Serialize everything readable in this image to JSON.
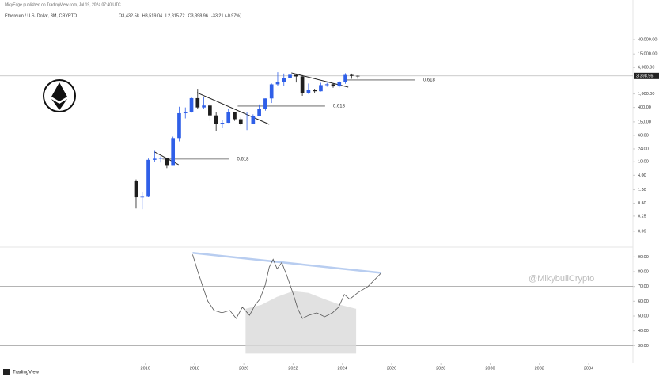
{
  "header": {
    "publisher": "MikyEdge published on TradingView.com, Jul 19, 2024 07:40 UTC",
    "symbol": "Ethereum / U.S. Dollar, 3M, CRYPTO",
    "ohlc": [
      "O3,432.58",
      "H3,519.04",
      "L2,815.72",
      "C3,398.96",
      "-33.21 (-0.97%)"
    ],
    "watermark": "@MikybullCrypto",
    "brand": "TradingView"
  },
  "chart_data": [
    {
      "type": "candlestick",
      "name": "price",
      "log_scale": true,
      "xlim": [
        2010.1,
        2035.8
      ],
      "xticks": [
        2016,
        2018,
        2020,
        2022,
        2024,
        2026,
        2028,
        2030,
        2032,
        2034
      ],
      "ylim": [
        0.034,
        343000
      ],
      "yticks": [
        {
          "value": 40000,
          "label": "40,000.00"
        },
        {
          "value": 15000,
          "label": "15,000.00"
        },
        {
          "value": 6000,
          "label": "6,000.00"
        },
        {
          "value": 1000,
          "label": "1,000.00"
        },
        {
          "value": 400,
          "label": "400.00"
        },
        {
          "value": 150,
          "label": "150.00"
        },
        {
          "value": 60,
          "label": "60.00"
        },
        {
          "value": 24,
          "label": "24.00"
        },
        {
          "value": 10,
          "label": "10.00"
        },
        {
          "value": 4,
          "label": "4.00"
        },
        {
          "value": 1.5,
          "label": "1.50"
        },
        {
          "value": 0.6,
          "label": "0.60"
        },
        {
          "value": 0.25,
          "label": "0.25"
        },
        {
          "value": 0.09,
          "label": "0.09"
        }
      ],
      "current_price": {
        "value": 3398.96,
        "label": "3,398.96"
      },
      "up_color": "#2f5fe8",
      "down_color": "#1e1e1e",
      "x": [
        2015.625,
        2015.875,
        2016.125,
        2016.375,
        2016.625,
        2016.875,
        2017.125,
        2017.375,
        2017.625,
        2017.875,
        2018.125,
        2018.375,
        2018.625,
        2018.875,
        2019.125,
        2019.375,
        2019.625,
        2019.875,
        2020.125,
        2020.375,
        2020.625,
        2020.875,
        2021.125,
        2021.375,
        2021.625,
        2021.875,
        2022.125,
        2022.375,
        2022.625,
        2022.875,
        2023.125,
        2023.375,
        2023.625,
        2023.875,
        2024.125,
        2024.375,
        2024.625
      ],
      "open": [
        2.77,
        0.9,
        0.93,
        11.4,
        12.3,
        13,
        8,
        50,
        270,
        300,
        750,
        400,
        455,
        233,
        133,
        141,
        290,
        180,
        130,
        133,
        226,
        360,
        737,
        1920,
        2275,
        3000,
        3680,
        3280,
        1070,
        1330,
        1200,
        1820,
        1930,
        1670,
        2280,
        3640,
        3432.58
      ],
      "high": [
        3.0,
        1.3,
        12.5,
        21,
        14.5,
        13,
        55,
        420,
        400,
        800,
        1420,
        830,
        520,
        300,
        170,
        360,
        300,
        200,
        290,
        250,
        490,
        740,
        2040,
        4380,
        4000,
        4890,
        3980,
        3580,
        2030,
        1420,
        2140,
        2140,
        2030,
        2400,
        4090,
        3980,
        3519.04
      ],
      "low": [
        0.42,
        0.4,
        0.9,
        10,
        9.5,
        6.5,
        8,
        40,
        190,
        280,
        360,
        360,
        160,
        82,
        100,
        140,
        160,
        117,
        86,
        130,
        220,
        320,
        540,
        1720,
        1700,
        2920,
        2180,
        880,
        1000,
        1070,
        1180,
        1630,
        1520,
        1550,
        2000,
        2800,
        2815.72
      ],
      "close": [
        0.9,
        0.93,
        11.4,
        12.3,
        13,
        8,
        50,
        270,
        300,
        750,
        400,
        455,
        233,
        133,
        141,
        290,
        180,
        130,
        133,
        226,
        360,
        737,
        1920,
        2275,
        3000,
        3680,
        3280,
        1070,
        1330,
        1200,
        1820,
        1930,
        1670,
        2280,
        3640,
        3432.58,
        3398.96
      ],
      "levels": [
        {
          "label": "0.618",
          "value": 12,
          "x": [
            2016.7,
            2019.4
          ]
        },
        {
          "label": "0.618",
          "value": 438,
          "x": [
            2019.75,
            2023.3
          ]
        },
        {
          "label": "0.618",
          "value": 2585,
          "x": [
            2024.2,
            2026.96
          ]
        }
      ],
      "trendlines": [
        {
          "x": [
            2016.38,
            2017.35
          ],
          "y": [
            19.4,
            8.2
          ]
        },
        {
          "x": [
            2018.1,
            2021.03
          ],
          "y": [
            1090,
            127
          ]
        },
        {
          "x": [
            2021.93,
            2024.24
          ],
          "y": [
            4190,
            1590
          ]
        }
      ]
    },
    {
      "type": "line",
      "name": "rsi",
      "color": "#555555",
      "ylim": [
        20,
        95
      ],
      "yticks": [
        {
          "value": 90,
          "label": "90.00"
        },
        {
          "value": 80,
          "label": "80.00"
        },
        {
          "value": 70,
          "label": "70.00"
        },
        {
          "value": 60,
          "label": "60.00"
        },
        {
          "value": 50,
          "label": "50.00"
        },
        {
          "value": 40,
          "label": "40.00"
        },
        {
          "value": 30,
          "label": "30.00"
        }
      ],
      "levels": [
        70,
        30
      ],
      "x": [
        2017.92,
        2018.15,
        2018.31,
        2018.53,
        2018.79,
        2019.11,
        2019.43,
        2019.69,
        2019.94,
        2020.23,
        2020.46,
        2020.65,
        2020.87,
        2021.03,
        2021.19,
        2021.35,
        2021.54,
        2021.74,
        2021.99,
        2022.19,
        2022.38,
        2022.63,
        2022.96,
        2023.28,
        2023.6,
        2023.85,
        2024.08,
        2024.3,
        2024.62,
        2025.04,
        2025.36,
        2025.58
      ],
      "values": [
        91.6,
        79.2,
        71.1,
        60.3,
        53.8,
        52.2,
        53.8,
        48.4,
        56.0,
        50.5,
        57.6,
        61.4,
        71.1,
        83.0,
        88.4,
        81.9,
        86.2,
        77.6,
        65.7,
        54.9,
        48.4,
        50.5,
        52.2,
        49.5,
        52.2,
        56.0,
        64.6,
        61.4,
        65.7,
        70.0,
        75.4,
        79.2
      ],
      "trendline": {
        "x": [
          2017.92,
          2025.58
        ],
        "y": [
          92.7,
          79.2
        ],
        "color": "#b8cdf0"
      },
      "shade": {
        "x": [
          2020.07,
          2020.71,
          2021.35,
          2021.99,
          2022.63,
          2023.28,
          2023.92,
          2024.56
        ],
        "values": [
          54.9,
          57.6,
          63,
          66.8,
          65.7,
          61.4,
          57.6,
          54.9
        ],
        "base": 24.6,
        "color": "#d9d9d9"
      }
    }
  ]
}
